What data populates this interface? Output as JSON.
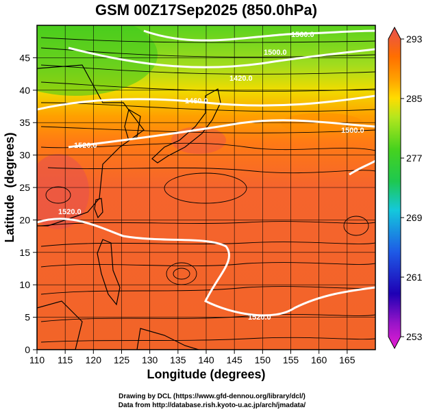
{
  "title": "GSM 00Z17Sep2025 (850.0hPa)",
  "chart_data": {
    "type": "heatmap",
    "title": "GSM 00Z17Sep2025 (850.0hPa)",
    "xlabel": "Longitude (degrees)",
    "ylabel": "Latitude  (degrees)",
    "xlim": [
      110,
      170
    ],
    "ylim": [
      0,
      50
    ],
    "x_ticks": [
      "110",
      "115",
      "120",
      "125",
      "130",
      "135",
      "140",
      "145",
      "150",
      "155",
      "160",
      "165"
    ],
    "y_ticks": [
      "0",
      "5",
      "10",
      "15",
      "20",
      "25",
      "30",
      "35",
      "40",
      "45"
    ],
    "grid": true,
    "colorbar": {
      "position": "right",
      "range": [
        253,
        293
      ],
      "ticks": [
        "253",
        "261",
        "269",
        "277",
        "285",
        "293"
      ],
      "colors": [
        "#e61ed2",
        "#1e00b4",
        "#1e3cd2",
        "#1e96f0",
        "#14c8c8",
        "#1ec83c",
        "#46d21e",
        "#a0e61e",
        "#ffe600",
        "#ffa000",
        "#ff6e00",
        "#f04b28",
        "#e65050"
      ]
    },
    "contours": {
      "color": "#ffffff",
      "labels": [
        "1560.0",
        "1500.0",
        "1460.0",
        "1420.0",
        "1520.0",
        "1500.0",
        "1520.0",
        "1520.0"
      ]
    },
    "vectors": "streamlines (850hPa wind)"
  },
  "credits": {
    "line1": "Drawing by DCL (https://www.gfd-dennou.org/library/dcl/)",
    "line2": "Data from http://database.rish.kyoto-u.ac.jp/arch/jmadata/"
  }
}
